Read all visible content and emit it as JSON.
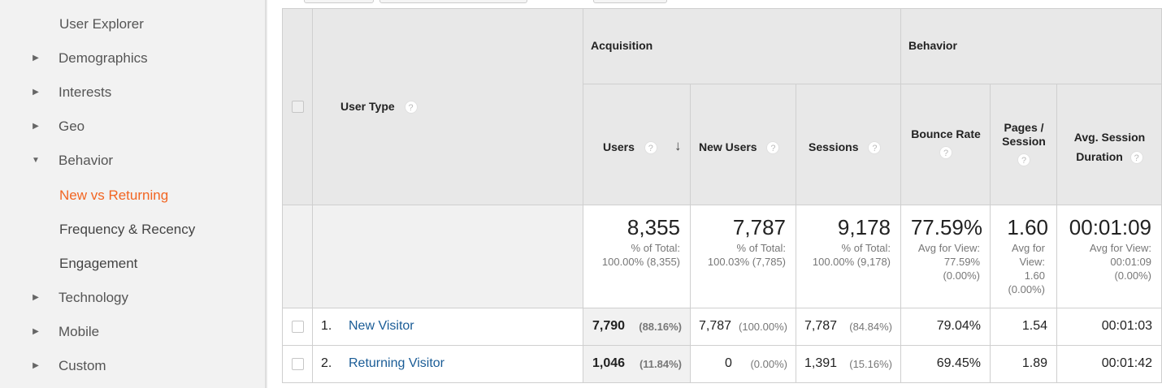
{
  "sidebar": {
    "items": [
      {
        "label": "User Explorer",
        "expandable": false,
        "expanded": false
      },
      {
        "label": "Demographics",
        "expandable": true,
        "expanded": false
      },
      {
        "label": "Interests",
        "expandable": true,
        "expanded": false
      },
      {
        "label": "Geo",
        "expandable": true,
        "expanded": false
      },
      {
        "label": "Behavior",
        "expandable": true,
        "expanded": true
      },
      {
        "label": "New vs Returning",
        "expandable": false,
        "active": true
      },
      {
        "label": "Frequency & Recency",
        "expandable": false
      },
      {
        "label": "Engagement",
        "expandable": false
      },
      {
        "label": "Technology",
        "expandable": true,
        "expanded": false
      },
      {
        "label": "Mobile",
        "expandable": true,
        "expanded": false
      },
      {
        "label": "Custom",
        "expandable": true,
        "expanded": false
      }
    ]
  },
  "table": {
    "dimension_header": "User Type",
    "groups": {
      "acquisition": "Acquisition",
      "behavior": "Behavior"
    },
    "columns": {
      "users": "Users",
      "new_users": "New Users",
      "sessions": "Sessions",
      "bounce_rate": "Bounce Rate",
      "pages_session_1": "Pages /",
      "pages_session_2": "Session",
      "avg_session_1": "Avg. Session",
      "avg_session_2": "Duration"
    },
    "help_glyph": "?",
    "sort_glyph": "↓",
    "totals": {
      "users": {
        "value": "8,355",
        "l1": "% of Total:",
        "l2": "100.00% (8,355)"
      },
      "new_users": {
        "value": "7,787",
        "l1": "% of Total:",
        "l2": "100.03% (7,785)"
      },
      "sessions": {
        "value": "9,178",
        "l1": "% of Total:",
        "l2": "100.00% (9,178)"
      },
      "bounce_rate": {
        "value": "77.59%",
        "l1": "Avg for View:",
        "l2": "77.59%",
        "l3": "(0.00%)"
      },
      "pages_session": {
        "value": "1.60",
        "l1": "Avg for",
        "l2": "View:",
        "l3": "1.60",
        "l4": "(0.00%)"
      },
      "avg_session": {
        "value": "00:01:09",
        "l1": "Avg for View:",
        "l2": "00:01:09",
        "l3": "(0.00%)"
      }
    },
    "rows": [
      {
        "index": "1.",
        "name": "New Visitor",
        "users": "7,790",
        "users_pct": "(88.16%)",
        "new_users": "7,787",
        "new_users_pct": "(100.00%)",
        "sessions": "7,787",
        "sessions_pct": "(84.84%)",
        "bounce_rate": "79.04%",
        "pages_session": "1.54",
        "avg_session": "00:01:03"
      },
      {
        "index": "2.",
        "name": "Returning Visitor",
        "users": "1,046",
        "users_pct": "(11.84%)",
        "new_users": "0",
        "new_users_pct": "(0.00%)",
        "sessions": "1,391",
        "sessions_pct": "(15.16%)",
        "bounce_rate": "69.45%",
        "pages_session": "1.89",
        "avg_session": "00:01:42"
      }
    ]
  }
}
